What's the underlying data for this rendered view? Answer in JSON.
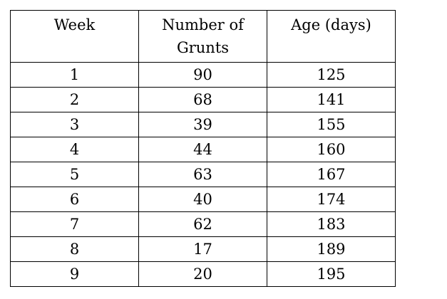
{
  "chart_data": {
    "type": "table",
    "columns": [
      "Week",
      "Number of Grunts",
      "Age (days)"
    ],
    "header_lines": [
      [
        "Week"
      ],
      [
        "Number of",
        "Grunts"
      ],
      [
        "Age (days)"
      ]
    ],
    "rows": [
      [
        "1",
        "90",
        "125"
      ],
      [
        "2",
        "68",
        "141"
      ],
      [
        "3",
        "39",
        "155"
      ],
      [
        "4",
        "44",
        "160"
      ],
      [
        "5",
        "63",
        "167"
      ],
      [
        "6",
        "40",
        "174"
      ],
      [
        "7",
        "62",
        "183"
      ],
      [
        "8",
        "17",
        "189"
      ],
      [
        "9",
        "20",
        "195"
      ]
    ]
  }
}
